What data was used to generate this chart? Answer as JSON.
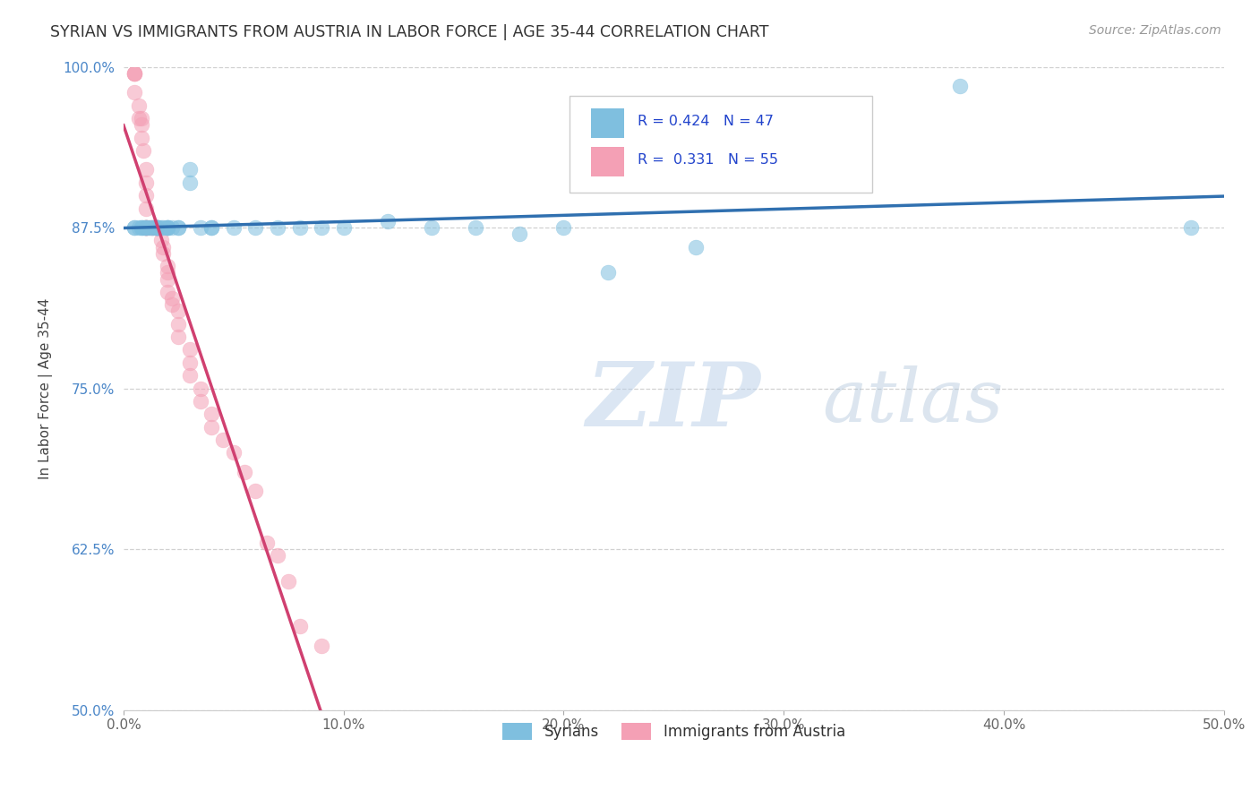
{
  "title": "SYRIAN VS IMMIGRANTS FROM AUSTRIA IN LABOR FORCE | AGE 35-44 CORRELATION CHART",
  "source": "Source: ZipAtlas.com",
  "ylabel": "In Labor Force | Age 35-44",
  "xlim": [
    0.0,
    0.5
  ],
  "ylim": [
    0.5,
    1.0
  ],
  "xtick_labels": [
    "0.0%",
    "10.0%",
    "20.0%",
    "30.0%",
    "40.0%",
    "50.0%"
  ],
  "ytick_labels": [
    "50.0%",
    "62.5%",
    "75.0%",
    "87.5%",
    "100.0%"
  ],
  "syrians_R": 0.424,
  "syrians_N": 47,
  "austria_R": 0.331,
  "austria_N": 55,
  "legend_label_1": "Syrians",
  "legend_label_2": "Immigrants from Austria",
  "color_syrians": "#7fbfdf",
  "color_austria": "#f4a0b5",
  "color_line_syrians": "#3070b0",
  "color_line_austria": "#d04070",
  "watermark_zip": "ZIP",
  "watermark_atlas": "atlas",
  "watermark_color_zip": "#b8cfe8",
  "watermark_color_atlas": "#a8c0d8",
  "syrians_x": [
    0.005,
    0.005,
    0.007,
    0.008,
    0.008,
    0.009,
    0.01,
    0.01,
    0.01,
    0.012,
    0.013,
    0.013,
    0.015,
    0.015,
    0.015,
    0.015,
    0.015,
    0.016,
    0.017,
    0.018,
    0.02,
    0.02,
    0.02,
    0.02,
    0.022,
    0.025,
    0.025,
    0.03,
    0.03,
    0.035,
    0.04,
    0.04,
    0.05,
    0.06,
    0.07,
    0.08,
    0.09,
    0.1,
    0.12,
    0.14,
    0.16,
    0.18,
    0.2,
    0.22,
    0.26,
    0.38,
    0.485
  ],
  "syrians_y": [
    0.875,
    0.875,
    0.875,
    0.875,
    0.875,
    0.875,
    0.875,
    0.875,
    0.875,
    0.875,
    0.875,
    0.875,
    0.875,
    0.875,
    0.875,
    0.875,
    0.875,
    0.875,
    0.875,
    0.875,
    0.875,
    0.875,
    0.875,
    0.875,
    0.875,
    0.875,
    0.875,
    0.92,
    0.91,
    0.875,
    0.875,
    0.875,
    0.875,
    0.875,
    0.875,
    0.875,
    0.875,
    0.875,
    0.88,
    0.875,
    0.875,
    0.87,
    0.875,
    0.84,
    0.86,
    0.985,
    0.875
  ],
  "austria_x": [
    0.005,
    0.005,
    0.005,
    0.005,
    0.007,
    0.007,
    0.008,
    0.008,
    0.008,
    0.009,
    0.01,
    0.01,
    0.01,
    0.01,
    0.01,
    0.01,
    0.01,
    0.01,
    0.01,
    0.012,
    0.013,
    0.013,
    0.015,
    0.015,
    0.015,
    0.015,
    0.015,
    0.017,
    0.018,
    0.018,
    0.02,
    0.02,
    0.02,
    0.02,
    0.022,
    0.022,
    0.025,
    0.025,
    0.025,
    0.03,
    0.03,
    0.03,
    0.035,
    0.035,
    0.04,
    0.04,
    0.045,
    0.05,
    0.055,
    0.06,
    0.065,
    0.07,
    0.075,
    0.08,
    0.09
  ],
  "austria_y": [
    0.995,
    0.995,
    0.995,
    0.98,
    0.97,
    0.96,
    0.96,
    0.955,
    0.945,
    0.935,
    0.92,
    0.91,
    0.9,
    0.89,
    0.875,
    0.875,
    0.875,
    0.875,
    0.875,
    0.875,
    0.875,
    0.875,
    0.875,
    0.875,
    0.875,
    0.875,
    0.875,
    0.865,
    0.86,
    0.855,
    0.845,
    0.84,
    0.835,
    0.825,
    0.82,
    0.815,
    0.81,
    0.8,
    0.79,
    0.78,
    0.77,
    0.76,
    0.75,
    0.74,
    0.73,
    0.72,
    0.71,
    0.7,
    0.685,
    0.67,
    0.63,
    0.62,
    0.6,
    0.565,
    0.55
  ]
}
